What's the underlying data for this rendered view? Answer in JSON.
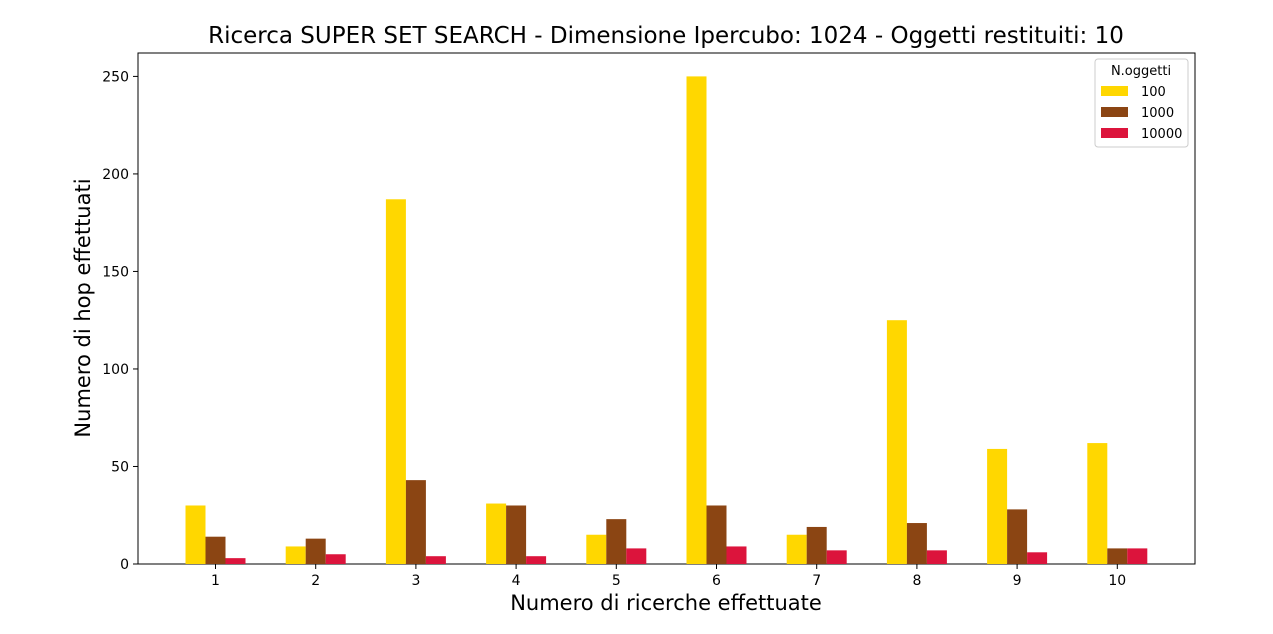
{
  "chart_data": {
    "type": "bar",
    "title": "Ricerca SUPER SET SEARCH - Dimensione Ipercubo: 1024 - Oggetti restituiti: 10",
    "xlabel": "Numero di ricerche effettuate",
    "ylabel": "Numero di hop effettuati",
    "categories": [
      "1",
      "2",
      "3",
      "4",
      "5",
      "6",
      "7",
      "8",
      "9",
      "10"
    ],
    "ylim": [
      0,
      262
    ],
    "yticks": [
      0,
      50,
      100,
      150,
      200,
      250
    ],
    "legend": {
      "title": "N.oggetti",
      "position": "top-right"
    },
    "series": [
      {
        "name": "100",
        "color": "#FFD700",
        "values": [
          30,
          9,
          187,
          31,
          15,
          250,
          15,
          125,
          59,
          62
        ]
      },
      {
        "name": "1000",
        "color": "#8B4513",
        "values": [
          14,
          13,
          43,
          30,
          23,
          30,
          19,
          21,
          28,
          8
        ]
      },
      {
        "name": "10000",
        "color": "#DC143C",
        "values": [
          3,
          5,
          4,
          4,
          8,
          9,
          7,
          7,
          6,
          8
        ]
      }
    ]
  }
}
